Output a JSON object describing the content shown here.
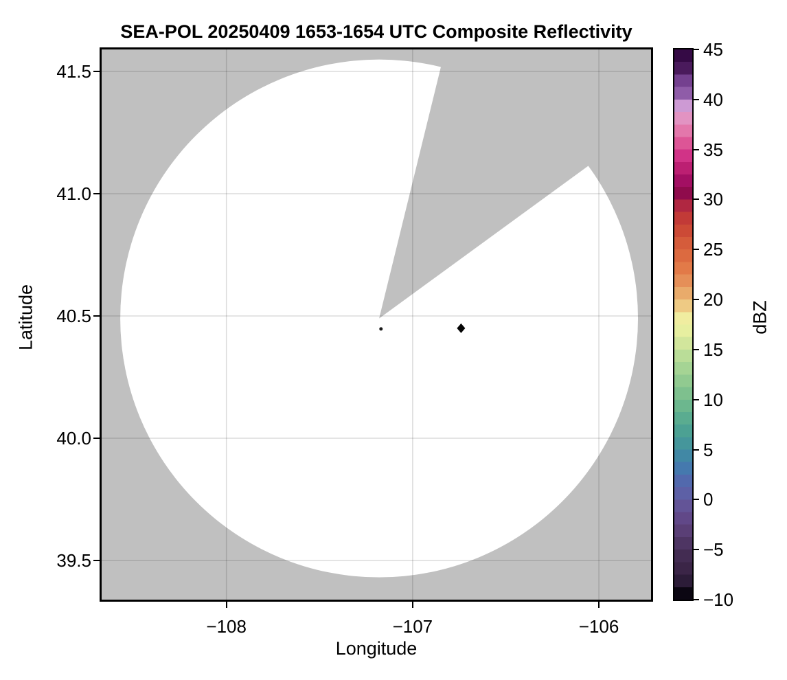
{
  "figure": {
    "title": "SEA-POL 20250409 1653-1654 UTC Composite Reflectivity"
  },
  "axes": {
    "xlabel": "Longitude",
    "ylabel": "Latitude",
    "xtick_labels": [
      "−108",
      "−107",
      "−106"
    ],
    "ytick_labels": [
      "41.5",
      "41.0",
      "40.5",
      "40.0",
      "39.5"
    ]
  },
  "colorbar": {
    "label": "dBZ",
    "tick_labels": [
      "45",
      "40",
      "35",
      "30",
      "25",
      "20",
      "15",
      "10",
      "5",
      "0",
      "−5",
      "−10"
    ]
  },
  "chart_data": {
    "type": "heatmap",
    "subtype": "radar-composite-reflectivity-ppi",
    "title": "SEA-POL 20250409 1653-1654 UTC Composite Reflectivity",
    "xlabel": "Longitude",
    "ylabel": "Latitude",
    "xlim": [
      -108.67,
      -105.72
    ],
    "ylim": [
      39.34,
      41.59
    ],
    "xticks": [
      -108,
      -107,
      -106
    ],
    "yticks": [
      41.5,
      41.0,
      40.5,
      40.0,
      39.5
    ],
    "grid": true,
    "gridline_color": "rgba(0,0,0,0.14)",
    "nodata_color": "#c0c0c0",
    "coverage_color": "#ffffff",
    "spine_color": "#000000",
    "radar": {
      "lon": -107.18,
      "lat": 40.49,
      "range_deg_lon": 1.39,
      "missing_sector_azimuths_deg": [
        13.8,
        53.9
      ]
    },
    "points": [
      {
        "lon": -106.74,
        "lat": 40.45,
        "marker": "diamond",
        "color": "#050505"
      },
      {
        "lon": -107.17,
        "lat": 40.447,
        "marker": "dot",
        "color": "#1a1a1a"
      }
    ],
    "colorbar": {
      "label": "dBZ",
      "vmin": -10,
      "vmax": 45,
      "ticks": [
        45,
        40,
        35,
        30,
        25,
        20,
        15,
        10,
        5,
        0,
        -5,
        -10
      ],
      "band_width_dbz": 1.25,
      "bands": [
        [
          -10.0,
          "#0b0612"
        ],
        [
          -8.75,
          "#2c1c38"
        ],
        [
          -7.5,
          "#3b2547"
        ],
        [
          -6.25,
          "#432c52"
        ],
        [
          -5.0,
          "#4e3563"
        ],
        [
          -3.75,
          "#5a3f76"
        ],
        [
          -2.5,
          "#614888"
        ],
        [
          -1.25,
          "#635497"
        ],
        [
          0.0,
          "#5d60a6"
        ],
        [
          1.25,
          "#5269ad"
        ],
        [
          2.5,
          "#4579ae"
        ],
        [
          3.75,
          "#4188a5"
        ],
        [
          5.0,
          "#45969b"
        ],
        [
          6.25,
          "#4ca193"
        ],
        [
          7.5,
          "#5aac90"
        ],
        [
          8.75,
          "#6cb78e"
        ],
        [
          10.0,
          "#7ec08e"
        ],
        [
          11.25,
          "#91ca90"
        ],
        [
          12.5,
          "#a5d494"
        ],
        [
          13.75,
          "#badd98"
        ],
        [
          15.0,
          "#d2e69c"
        ],
        [
          16.25,
          "#e7efa0"
        ],
        [
          17.5,
          "#f0eda0"
        ],
        [
          18.75,
          "#eeca84"
        ],
        [
          20.0,
          "#e9ab6b"
        ],
        [
          21.25,
          "#e58f58"
        ],
        [
          22.5,
          "#e27a48"
        ],
        [
          23.75,
          "#dc6a40"
        ],
        [
          25.0,
          "#d55c3b"
        ],
        [
          26.25,
          "#cc4a36"
        ],
        [
          27.5,
          "#c23a37"
        ],
        [
          28.75,
          "#b02741"
        ],
        [
          30.0,
          "#8f0b4c"
        ],
        [
          31.25,
          "#a30f63"
        ],
        [
          32.5,
          "#bc1f72"
        ],
        [
          33.75,
          "#d13387"
        ],
        [
          35.0,
          "#dd5596"
        ],
        [
          36.25,
          "#e377ab"
        ],
        [
          37.5,
          "#e293c2"
        ],
        [
          38.75,
          "#cd9ad4"
        ],
        [
          40.0,
          "#8f5ca8"
        ],
        [
          41.25,
          "#74408f"
        ],
        [
          42.5,
          "#4a1a5c"
        ],
        [
          43.75,
          "#350a45"
        ]
      ]
    }
  }
}
